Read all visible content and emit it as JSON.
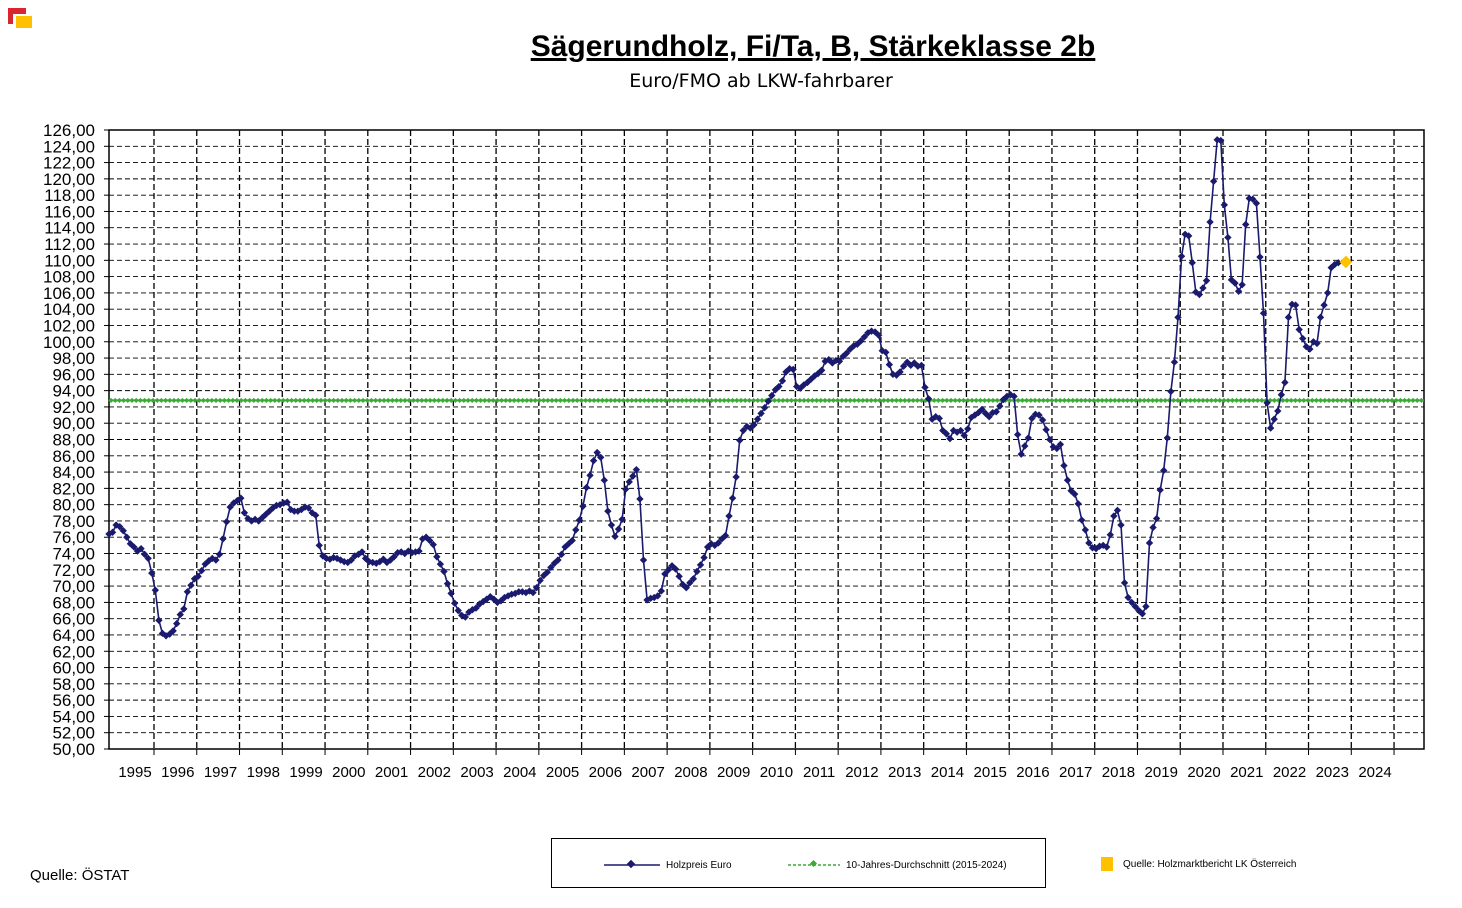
{
  "title": "Sägerundholz, Fi/Ta, B, Stärkeklasse 2b",
  "subtitle": "Euro/FMO ab LKW-fahrbarer",
  "source_left": "Quelle: ÖSTAT",
  "legend": {
    "series1": "Holzpreis Euro",
    "series2": "10-Jahres-Durchschnitt (2015-2024)",
    "source_right": "Quelle: Holzmarktbericht LK Österreich"
  },
  "colors": {
    "series1": "#1a1a6e",
    "series2": "#3aaa35",
    "highlight": "#ffc000",
    "logo_red": "#d9262c",
    "logo_yellow": "#ffc000"
  },
  "chart_data": {
    "type": "line",
    "title": "Sägerundholz, Fi/Ta, B, Stärkeklasse 2b",
    "subtitle": "Euro/FMO ab LKW-fahrbarer",
    "xlabel": "",
    "ylabel": "",
    "ylim": [
      50,
      126
    ],
    "y_ticks": [
      "126,00",
      "124,00",
      "122,00",
      "120,00",
      "118,00",
      "116,00",
      "114,00",
      "112,00",
      "110,00",
      "108,00",
      "106,00",
      "104,00",
      "102,00",
      "100,00",
      "98,00",
      "96,00",
      "94,00",
      "92,00",
      "90,00",
      "88,00",
      "86,00",
      "84,00",
      "82,00",
      "80,00",
      "78,00",
      "76,00",
      "74,00",
      "72,00",
      "70,00",
      "68,00",
      "66,00",
      "64,00",
      "62,00",
      "60,00",
      "58,00",
      "56,00",
      "54,00",
      "52,00",
      "50,00"
    ],
    "year_labels": [
      "1995",
      "1996",
      "1997",
      "1998",
      "1999",
      "2000",
      "2001",
      "2002",
      "2003",
      "2004",
      "2005",
      "2006",
      "2007",
      "2008",
      "2009",
      "2010",
      "2011",
      "2012",
      "2013",
      "2014",
      "2015",
      "2016",
      "2017",
      "2018",
      "2019",
      "2020",
      "2021",
      "2022",
      "2023",
      "2024"
    ],
    "grid": true,
    "legend_position": "bottom",
    "series": [
      {
        "name": "Holzpreis Euro",
        "start": "1994-01",
        "step": "month",
        "values": [
          76.4,
          76.6,
          77.5,
          77.3,
          76.8,
          76.0,
          75.2,
          74.8,
          74.3,
          74.6,
          73.9,
          73.4,
          71.6,
          69.5,
          65.8,
          64.2,
          63.9,
          64.1,
          64.5,
          65.4,
          66.5,
          67.2,
          69.3,
          70.1,
          70.9,
          71.2,
          71.9,
          72.7,
          73.1,
          73.4,
          73.2,
          73.9,
          75.8,
          77.9,
          79.7,
          80.2,
          80.5,
          80.8,
          79.0,
          78.3,
          78.0,
          78.2,
          78.0,
          78.4,
          78.8,
          79.2,
          79.6,
          79.9,
          80.0,
          80.2,
          80.3,
          79.4,
          79.2,
          79.2,
          79.4,
          79.7,
          79.6,
          79.0,
          78.7,
          75.0,
          73.7,
          73.4,
          73.3,
          73.5,
          73.4,
          73.2,
          73.0,
          72.9,
          73.2,
          73.7,
          73.9,
          74.2,
          73.4,
          73.0,
          72.9,
          72.8,
          73.0,
          73.3,
          72.9,
          73.2,
          73.6,
          74.1,
          74.2,
          74.0,
          74.3,
          74.1,
          74.2,
          74.3,
          75.8,
          76.0,
          75.6,
          75.1,
          73.6,
          72.7,
          71.8,
          70.3,
          69.1,
          67.9,
          67.0,
          66.4,
          66.2,
          66.8,
          67.1,
          67.3,
          67.8,
          68.1,
          68.4,
          68.7,
          68.4,
          68.0,
          68.2,
          68.6,
          68.8,
          69.0,
          69.1,
          69.3,
          69.3,
          69.2,
          69.4,
          69.2,
          69.8,
          70.7,
          71.3,
          71.7,
          72.3,
          72.8,
          73.2,
          73.9,
          74.8,
          75.2,
          75.6,
          76.9,
          78.1,
          79.8,
          82.1,
          83.6,
          85.4,
          86.4,
          85.8,
          83.0,
          79.2,
          77.5,
          76.1,
          77.0,
          78.2,
          81.9,
          82.8,
          83.5,
          84.3,
          80.7,
          73.2,
          68.3,
          68.5,
          68.6,
          68.8,
          69.4,
          71.5,
          72.0,
          72.5,
          72.1,
          71.2,
          70.2,
          69.8,
          70.4,
          70.9,
          71.8,
          72.6,
          73.5,
          74.8,
          75.2,
          75.0,
          75.3,
          75.8,
          76.2,
          78.6,
          80.8,
          83.4,
          87.9,
          89.1,
          89.6,
          89.4,
          89.8,
          90.5,
          91.2,
          91.9,
          92.7,
          93.4,
          94.1,
          94.5,
          95.2,
          96.3,
          96.7,
          96.6,
          94.5,
          94.3,
          94.7,
          95.0,
          95.4,
          95.8,
          96.1,
          96.5,
          97.6,
          97.8,
          97.4,
          97.7,
          97.6,
          98.2,
          98.6,
          99.1,
          99.5,
          99.7,
          100.1,
          100.6,
          101.1,
          101.3,
          101.2,
          100.8,
          98.9,
          98.7,
          97.2,
          96.0,
          95.9,
          96.3,
          97.0,
          97.5,
          97.1,
          97.4,
          97.0,
          97.1,
          94.4,
          93.0,
          90.5,
          90.8,
          90.6,
          89.1,
          88.7,
          88.1,
          89.1,
          88.9,
          89.1,
          88.5,
          89.3,
          90.7,
          91.0,
          91.3,
          91.7,
          91.2,
          90.8,
          91.3,
          91.4,
          92.1,
          92.9,
          93.3,
          93.5,
          93.3,
          88.6,
          86.2,
          87.2,
          88.2,
          90.6,
          91.1,
          91.0,
          90.4,
          89.2,
          88.0,
          87.1,
          86.9,
          87.4,
          84.8,
          83.0,
          81.7,
          81.3,
          80.1,
          78.1,
          76.9,
          75.3,
          74.7,
          74.6,
          74.9,
          75.0,
          74.8,
          76.3,
          78.6,
          79.3,
          77.5,
          70.4,
          68.6,
          68.0,
          67.5,
          67.0,
          66.6,
          67.5,
          75.3,
          77.2,
          78.3,
          81.8,
          84.2,
          88.2,
          93.9,
          97.5,
          103.0,
          110.5,
          113.2,
          113.0,
          109.7,
          106.1,
          105.8,
          106.6,
          107.5,
          114.7,
          119.7,
          124.8,
          124.7,
          116.8,
          112.8,
          107.6,
          107.2,
          106.2,
          107.0,
          114.4,
          117.6,
          117.5,
          117.0,
          110.4,
          103.5,
          92.5,
          89.4,
          90.5,
          91.5,
          93.5,
          95.0,
          103.0,
          104.6,
          104.5,
          101.5,
          100.4,
          99.4,
          99.1,
          100.0,
          99.8,
          103.0,
          104.5,
          106.0,
          109.1,
          109.5,
          109.7
        ],
        "highlight_value": 109.8
      },
      {
        "name": "10-Jahres-Durchschnitt (2015-2024)",
        "constant_value": 92.8
      }
    ]
  }
}
